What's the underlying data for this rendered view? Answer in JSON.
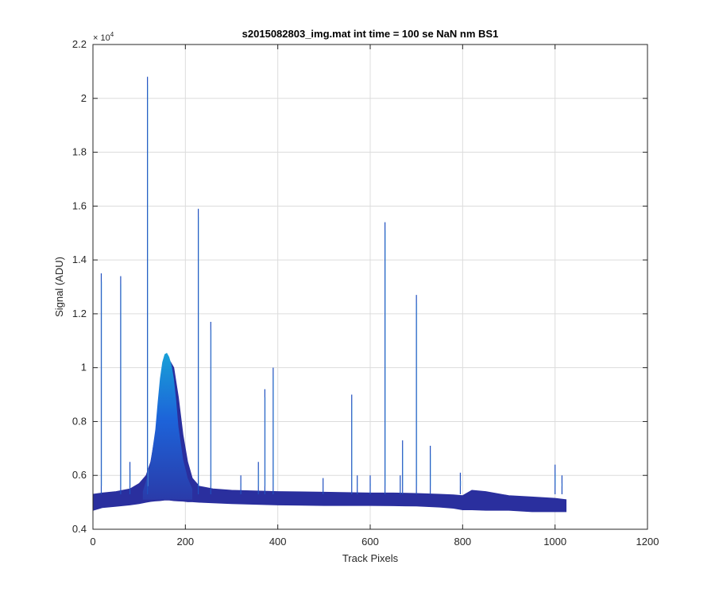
{
  "chart_data": {
    "type": "line",
    "title": "s2015082803_img.mat int time = 100 se  NaN nm BS1",
    "xlabel": "Track Pixels",
    "ylabel": "Signal (ADU)",
    "xlim": [
      0,
      1200
    ],
    "ylim": [
      4000,
      22000
    ],
    "xticks": [
      0,
      200,
      400,
      600,
      800,
      1000,
      1200
    ],
    "xtick_labels": [
      "0",
      "200",
      "400",
      "600",
      "800",
      "1000",
      "1200"
    ],
    "yticks": [
      4000,
      6000,
      8000,
      10000,
      12000,
      14000,
      16000,
      18000,
      20000,
      22000
    ],
    "ytick_labels": [
      "0.4",
      "0.6",
      "0.8",
      "1",
      "1.2",
      "1.4",
      "1.6",
      "1.8",
      "2",
      "2.2"
    ],
    "y_exponent_base": "× 10",
    "y_exponent_power": "4",
    "grid": true,
    "x_extent": [
      0,
      1024
    ],
    "band": {
      "x": [
        0,
        20,
        50,
        80,
        100,
        115,
        125,
        135,
        145,
        155,
        165,
        175,
        185,
        195,
        205,
        215,
        230,
        260,
        300,
        400,
        500,
        600,
        650,
        700,
        750,
        780,
        800,
        820,
        850,
        900,
        950,
        1000,
        1024
      ],
      "y_low": [
        4700,
        4800,
        4850,
        4900,
        4950,
        5000,
        5030,
        5050,
        5060,
        5080,
        5080,
        5060,
        5050,
        5040,
        5020,
        5020,
        5000,
        4980,
        4950,
        4900,
        4880,
        4880,
        4870,
        4860,
        4820,
        4780,
        4720,
        4720,
        4700,
        4700,
        4650,
        4650,
        4650
      ],
      "y_high": [
        5300,
        5350,
        5400,
        5500,
        5700,
        6000,
        6500,
        7500,
        8900,
        10000,
        10300,
        10000,
        8900,
        7500,
        6500,
        5900,
        5600,
        5500,
        5450,
        5400,
        5380,
        5350,
        5350,
        5330,
        5300,
        5280,
        5250,
        5450,
        5400,
        5250,
        5200,
        5150,
        5100
      ]
    },
    "peak_band": {
      "x": [
        108,
        115,
        125,
        135,
        140,
        145,
        150,
        155,
        160,
        165,
        170,
        175,
        180,
        185,
        195,
        205,
        215
      ],
      "y": [
        5400,
        5800,
        6500,
        7700,
        8700,
        9600,
        10200,
        10500,
        10550,
        10400,
        10100,
        9600,
        8800,
        7800,
        6600,
        5900,
        5500
      ]
    },
    "spikes": [
      {
        "x": 18,
        "y": 13500
      },
      {
        "x": 60,
        "y": 13400
      },
      {
        "x": 80,
        "y": 6500
      },
      {
        "x": 118,
        "y": 20800
      },
      {
        "x": 228,
        "y": 15900
      },
      {
        "x": 255,
        "y": 11700
      },
      {
        "x": 320,
        "y": 6000
      },
      {
        "x": 358,
        "y": 6500
      },
      {
        "x": 372,
        "y": 9200
      },
      {
        "x": 390,
        "y": 10000
      },
      {
        "x": 498,
        "y": 5900
      },
      {
        "x": 560,
        "y": 9000
      },
      {
        "x": 572,
        "y": 6000
      },
      {
        "x": 600,
        "y": 6000
      },
      {
        "x": 632,
        "y": 15400
      },
      {
        "x": 665,
        "y": 6000
      },
      {
        "x": 670,
        "y": 7300
      },
      {
        "x": 700,
        "y": 12700
      },
      {
        "x": 730,
        "y": 7100
      },
      {
        "x": 795,
        "y": 6100
      },
      {
        "x": 1000,
        "y": 6400
      },
      {
        "x": 1015,
        "y": 6000
      }
    ],
    "colors": {
      "band": "#2a2f9e",
      "peak_top": "#18a0d8",
      "peak_mid": "#1d63d9",
      "peak_bottom": "#2a3aa8",
      "spike": "#2050c0",
      "spike_light": "#66b8e0",
      "grid": "#dcdcdc",
      "axis": "#262626"
    }
  }
}
